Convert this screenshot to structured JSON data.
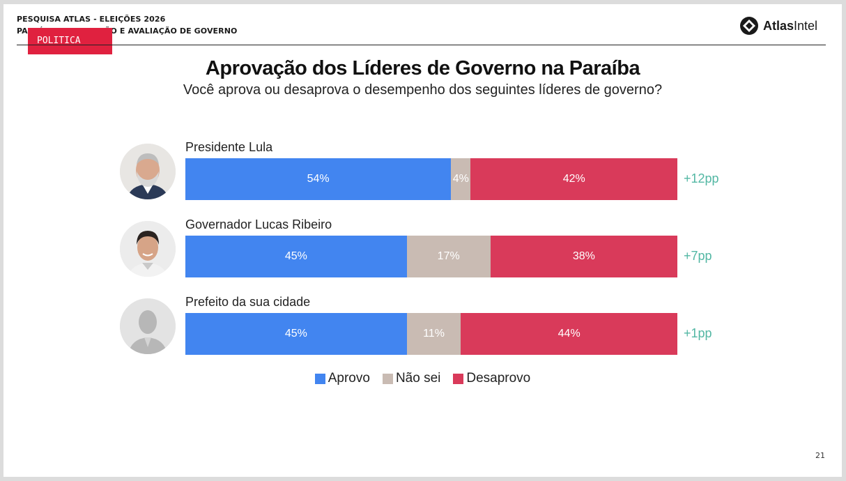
{
  "header": {
    "line1": "PESQUISA ATLAS - ELEIÇÕES 2026",
    "line2": "PARAÍBA - APROVAÇÃO E AVALIAÇÃO DE GOVERNO",
    "badge": "POLITICA",
    "logo_bold": "Atlas",
    "logo_regular": "Intel"
  },
  "page_number": "21",
  "colors": {
    "aprovo": "#4285f0",
    "nao_sei": "#c9bbb3",
    "desaprovo": "#d93a5a",
    "diff": "#52b7a3",
    "badge": "#e0213f"
  },
  "chart_data": {
    "type": "bar",
    "orientation": "horizontal-stacked-100",
    "title": "Aprovação dos Líderes de Governo na Paraíba",
    "subtitle": "Você aprova ou desaprova o desempenho dos seguintes líderes de governo?",
    "categories": [
      "Presidente Lula",
      "Governador Lucas Ribeiro",
      "Prefeito da sua cidade"
    ],
    "series": [
      {
        "name": "Aprovo",
        "values": [
          54,
          45,
          45
        ]
      },
      {
        "name": "Não sei",
        "values": [
          4,
          17,
          11
        ]
      },
      {
        "name": "Desaprovo",
        "values": [
          42,
          38,
          44
        ]
      }
    ],
    "differences": [
      "+12pp",
      "+7pp",
      "+1pp"
    ],
    "legend_position": "bottom"
  }
}
